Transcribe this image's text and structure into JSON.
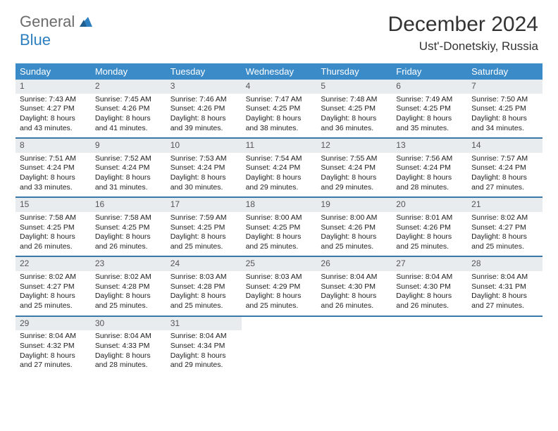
{
  "logo": {
    "part1": "General",
    "part2": "Blue"
  },
  "title": "December 2024",
  "location": "Ust'-Donetskiy, Russia",
  "colors": {
    "header_bg": "#3b8bc9",
    "daynum_bg": "#e8ecef",
    "week_border": "#3b7aa8",
    "logo_gray": "#6b6b6b",
    "logo_blue": "#2e7fbf"
  },
  "weekdays": [
    "Sunday",
    "Monday",
    "Tuesday",
    "Wednesday",
    "Thursday",
    "Friday",
    "Saturday"
  ],
  "weeks": [
    [
      {
        "n": "1",
        "sunrise": "7:43 AM",
        "sunset": "4:27 PM",
        "daylight": "8 hours and 43 minutes."
      },
      {
        "n": "2",
        "sunrise": "7:45 AM",
        "sunset": "4:26 PM",
        "daylight": "8 hours and 41 minutes."
      },
      {
        "n": "3",
        "sunrise": "7:46 AM",
        "sunset": "4:26 PM",
        "daylight": "8 hours and 39 minutes."
      },
      {
        "n": "4",
        "sunrise": "7:47 AM",
        "sunset": "4:25 PM",
        "daylight": "8 hours and 38 minutes."
      },
      {
        "n": "5",
        "sunrise": "7:48 AM",
        "sunset": "4:25 PM",
        "daylight": "8 hours and 36 minutes."
      },
      {
        "n": "6",
        "sunrise": "7:49 AM",
        "sunset": "4:25 PM",
        "daylight": "8 hours and 35 minutes."
      },
      {
        "n": "7",
        "sunrise": "7:50 AM",
        "sunset": "4:25 PM",
        "daylight": "8 hours and 34 minutes."
      }
    ],
    [
      {
        "n": "8",
        "sunrise": "7:51 AM",
        "sunset": "4:24 PM",
        "daylight": "8 hours and 33 minutes."
      },
      {
        "n": "9",
        "sunrise": "7:52 AM",
        "sunset": "4:24 PM",
        "daylight": "8 hours and 31 minutes."
      },
      {
        "n": "10",
        "sunrise": "7:53 AM",
        "sunset": "4:24 PM",
        "daylight": "8 hours and 30 minutes."
      },
      {
        "n": "11",
        "sunrise": "7:54 AM",
        "sunset": "4:24 PM",
        "daylight": "8 hours and 29 minutes."
      },
      {
        "n": "12",
        "sunrise": "7:55 AM",
        "sunset": "4:24 PM",
        "daylight": "8 hours and 29 minutes."
      },
      {
        "n": "13",
        "sunrise": "7:56 AM",
        "sunset": "4:24 PM",
        "daylight": "8 hours and 28 minutes."
      },
      {
        "n": "14",
        "sunrise": "7:57 AM",
        "sunset": "4:24 PM",
        "daylight": "8 hours and 27 minutes."
      }
    ],
    [
      {
        "n": "15",
        "sunrise": "7:58 AM",
        "sunset": "4:25 PM",
        "daylight": "8 hours and 26 minutes."
      },
      {
        "n": "16",
        "sunrise": "7:58 AM",
        "sunset": "4:25 PM",
        "daylight": "8 hours and 26 minutes."
      },
      {
        "n": "17",
        "sunrise": "7:59 AM",
        "sunset": "4:25 PM",
        "daylight": "8 hours and 25 minutes."
      },
      {
        "n": "18",
        "sunrise": "8:00 AM",
        "sunset": "4:25 PM",
        "daylight": "8 hours and 25 minutes."
      },
      {
        "n": "19",
        "sunrise": "8:00 AM",
        "sunset": "4:26 PM",
        "daylight": "8 hours and 25 minutes."
      },
      {
        "n": "20",
        "sunrise": "8:01 AM",
        "sunset": "4:26 PM",
        "daylight": "8 hours and 25 minutes."
      },
      {
        "n": "21",
        "sunrise": "8:02 AM",
        "sunset": "4:27 PM",
        "daylight": "8 hours and 25 minutes."
      }
    ],
    [
      {
        "n": "22",
        "sunrise": "8:02 AM",
        "sunset": "4:27 PM",
        "daylight": "8 hours and 25 minutes."
      },
      {
        "n": "23",
        "sunrise": "8:02 AM",
        "sunset": "4:28 PM",
        "daylight": "8 hours and 25 minutes."
      },
      {
        "n": "24",
        "sunrise": "8:03 AM",
        "sunset": "4:28 PM",
        "daylight": "8 hours and 25 minutes."
      },
      {
        "n": "25",
        "sunrise": "8:03 AM",
        "sunset": "4:29 PM",
        "daylight": "8 hours and 25 minutes."
      },
      {
        "n": "26",
        "sunrise": "8:04 AM",
        "sunset": "4:30 PM",
        "daylight": "8 hours and 26 minutes."
      },
      {
        "n": "27",
        "sunrise": "8:04 AM",
        "sunset": "4:30 PM",
        "daylight": "8 hours and 26 minutes."
      },
      {
        "n": "28",
        "sunrise": "8:04 AM",
        "sunset": "4:31 PM",
        "daylight": "8 hours and 27 minutes."
      }
    ],
    [
      {
        "n": "29",
        "sunrise": "8:04 AM",
        "sunset": "4:32 PM",
        "daylight": "8 hours and 27 minutes."
      },
      {
        "n": "30",
        "sunrise": "8:04 AM",
        "sunset": "4:33 PM",
        "daylight": "8 hours and 28 minutes."
      },
      {
        "n": "31",
        "sunrise": "8:04 AM",
        "sunset": "4:34 PM",
        "daylight": "8 hours and 29 minutes."
      },
      null,
      null,
      null,
      null
    ]
  ],
  "labels": {
    "sunrise_prefix": "Sunrise: ",
    "sunset_prefix": "Sunset: ",
    "daylight_prefix": "Daylight: "
  }
}
